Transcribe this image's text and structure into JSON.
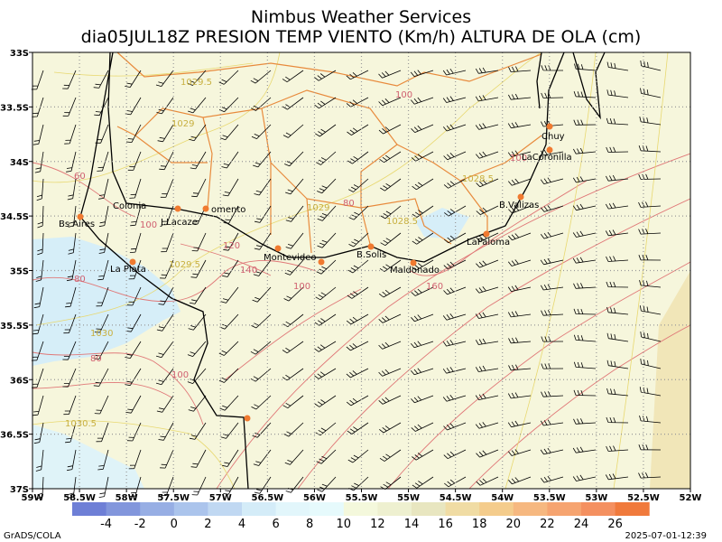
{
  "header": {
    "title": "Nimbus Weather Services",
    "subtitle": "dia05JUL18Z PRESION TEMP VIENTO (Km/h) ALTURA DE OLA (cm)"
  },
  "map": {
    "lon_ticks": [
      "59W",
      "58.5W",
      "58W",
      "57.5W",
      "57W",
      "56.5W",
      "56W",
      "55.5W",
      "55W",
      "54.5W",
      "54W",
      "53.5W",
      "53W",
      "52.5W",
      "52W"
    ],
    "lat_ticks": [
      "33S",
      "33.5S",
      "34S",
      "34.5S",
      "35S",
      "35.5S",
      "36S",
      "36.5S",
      "37S"
    ]
  },
  "places": [
    "Colonia",
    "Bs Aires",
    "J.Lacaze",
    "omento",
    "La Plata",
    "Montevideo",
    "B.Solis",
    "Maldonado",
    "LaPaloma",
    "B.Valizas",
    "LaCoronilla",
    "Chuy"
  ],
  "contour_labels": [
    "1029.5",
    "1029",
    "60",
    "100",
    "120",
    "140",
    "80",
    "1029.5",
    "1030",
    "80",
    "100",
    "1030.5",
    "1029",
    "80",
    "1028.5",
    "1028.5",
    "160",
    "100",
    "100",
    "100"
  ],
  "colorbar": {
    "labels": [
      -4,
      -2,
      0,
      2,
      4,
      6,
      8,
      10,
      12,
      14,
      16,
      18,
      20,
      22,
      24,
      26
    ],
    "colors": [
      "#6e7fd6",
      "#8296dc",
      "#97aee4",
      "#abc4ec",
      "#c0d8f2",
      "#d4ecf8",
      "#e2f6fb",
      "#e6fafc",
      "#f4f8dc",
      "#eef0d0",
      "#e8e6c0",
      "#f0dca4",
      "#f4cc8c",
      "#f6b880",
      "#f6a470",
      "#f49060",
      "#f07a3c"
    ]
  },
  "footer": {
    "left": "GrADS/COLA",
    "right": "2025-07-01-12:39"
  }
}
